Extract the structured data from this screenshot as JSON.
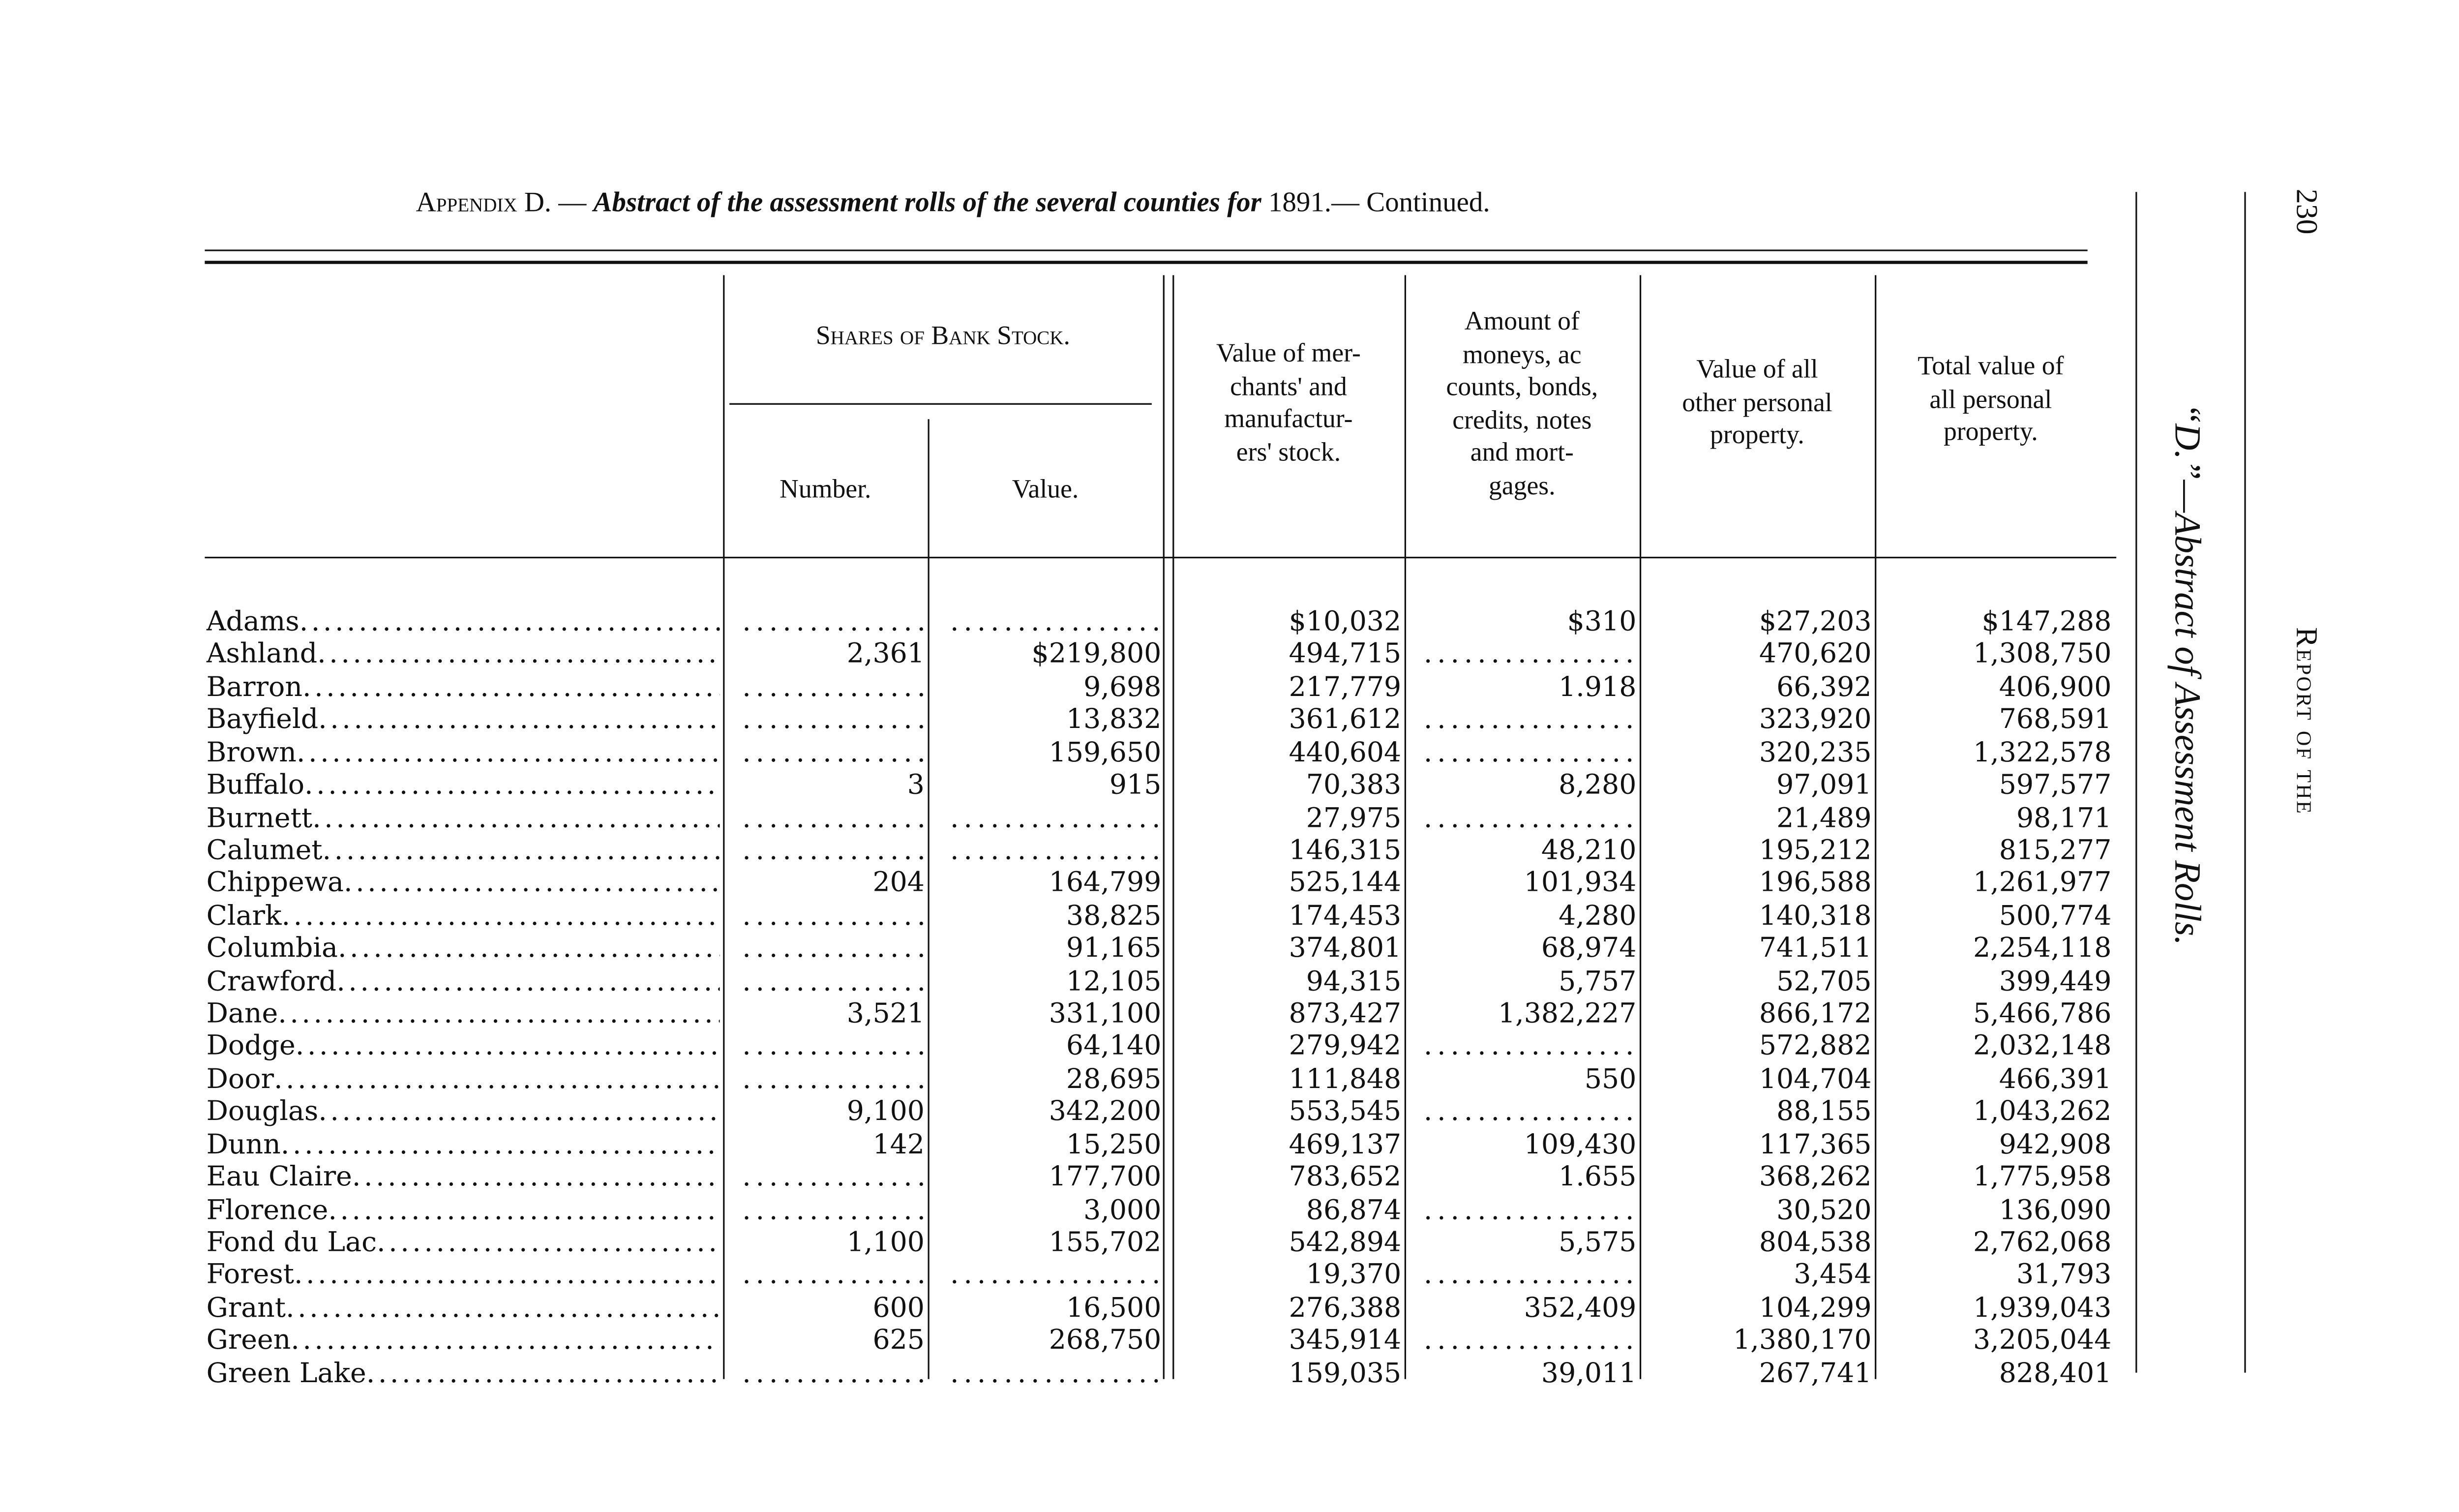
{
  "header": {
    "appendix_label": "Appendix D.",
    "title_dash": " — ",
    "title_italic": "Abstract of the assessment rolls of the several counties for",
    "year": " 1891.",
    "continued": "— Continued."
  },
  "side": {
    "page_number": "230",
    "running_head": "Report of the",
    "section_title": "“D.”—Abstract of Assessment Rolls."
  },
  "columns": {
    "bank_stock_group": "Shares of Bank Stock.",
    "number": "Number.",
    "value": "Value.",
    "merchants": "Value of mer-\nchants' and\nmanufactur-\ners' stock.",
    "moneys": "Amount of\nmoneys, ac\ncounts, bonds,\ncredits, notes\nand mort-\ngages.",
    "other": "Value of all\nother personal\nproperty.",
    "total": "Total value of\nall personal\nproperty."
  },
  "rows": [
    {
      "county": "Adams",
      "number": "",
      "value": "",
      "merchants": "$10,032",
      "moneys": "$310",
      "other": "$27,203",
      "total": "$147,288"
    },
    {
      "county": "Ashland",
      "number": "2,361",
      "value": "$219,800",
      "merchants": "494,715",
      "moneys": "",
      "other": "470,620",
      "total": "1,308,750"
    },
    {
      "county": "Barron",
      "number": "",
      "value": "9,698",
      "merchants": "217,779",
      "moneys": "1.918",
      "other": "66,392",
      "total": "406,900"
    },
    {
      "county": "Bayfield",
      "number": "",
      "value": "13,832",
      "merchants": "361,612",
      "moneys": "",
      "other": "323,920",
      "total": "768,591"
    },
    {
      "county": "Brown",
      "number": "",
      "value": "159,650",
      "merchants": "440,604",
      "moneys": "",
      "other": "320,235",
      "total": "1,322,578"
    },
    {
      "county": "Buffalo",
      "number": "3",
      "value": "915",
      "merchants": "70,383",
      "moneys": "8,280",
      "other": "97,091",
      "total": "597,577"
    },
    {
      "county": "Burnett",
      "number": "",
      "value": "",
      "merchants": "27,975",
      "moneys": "",
      "other": "21,489",
      "total": "98,171"
    },
    {
      "county": "Calumet",
      "number": "",
      "value": "",
      "merchants": "146,315",
      "moneys": "48,210",
      "other": "195,212",
      "total": "815,277"
    },
    {
      "county": "Chippewa",
      "number": "204",
      "value": "164,799",
      "merchants": "525,144",
      "moneys": "101,934",
      "other": "196,588",
      "total": "1,261,977"
    },
    {
      "county": "Clark",
      "number": "",
      "value": "38,825",
      "merchants": "174,453",
      "moneys": "4,280",
      "other": "140,318",
      "total": "500,774"
    },
    {
      "county": "Columbia",
      "number": "",
      "value": "91,165",
      "merchants": "374,801",
      "moneys": "68,974",
      "other": "741,511",
      "total": "2,254,118"
    },
    {
      "county": "Crawford",
      "number": "",
      "value": "12,105",
      "merchants": "94,315",
      "moneys": "5,757",
      "other": "52,705",
      "total": "399,449"
    },
    {
      "county": "Dane",
      "number": "3,521",
      "value": "331,100",
      "merchants": "873,427",
      "moneys": "1,382,227",
      "other": "866,172",
      "total": "5,466,786"
    },
    {
      "county": "Dodge",
      "number": "",
      "value": "64,140",
      "merchants": "279,942",
      "moneys": "",
      "other": "572,882",
      "total": "2,032,148"
    },
    {
      "county": "Door",
      "number": "",
      "value": "28,695",
      "merchants": "111,848",
      "moneys": "550",
      "other": "104,704",
      "total": "466,391"
    },
    {
      "county": "Douglas",
      "number": "9,100",
      "value": "342,200",
      "merchants": "553,545",
      "moneys": "",
      "other": "88,155",
      "total": "1,043,262"
    },
    {
      "county": "Dunn",
      "number": "142",
      "value": "15,250",
      "merchants": "469,137",
      "moneys": "109,430",
      "other": "117,365",
      "total": "942,908"
    },
    {
      "county": "Eau Claire",
      "number": "",
      "value": "177,700",
      "merchants": "783,652",
      "moneys": "1.655",
      "other": "368,262",
      "total": "1,775,958"
    },
    {
      "county": "Florence",
      "number": "",
      "value": "3,000",
      "merchants": "86,874",
      "moneys": "",
      "other": "30,520",
      "total": "136,090"
    },
    {
      "county": "Fond du Lac",
      "number": "1,100",
      "value": "155,702",
      "merchants": "542,894",
      "moneys": "5,575",
      "other": "804,538",
      "total": "2,762,068"
    },
    {
      "county": "Forest",
      "number": "",
      "value": "",
      "merchants": "19,370",
      "moneys": "",
      "other": "3,454",
      "total": "31,793"
    },
    {
      "county": "Grant",
      "number": "600",
      "value": "16,500",
      "merchants": "276,388",
      "moneys": "352,409",
      "other": "104,299",
      "total": "1,939,043"
    },
    {
      "county": "Green",
      "number": "625",
      "value": "268,750",
      "merchants": "345,914",
      "moneys": "",
      "other": "1,380,170",
      "total": "3,205,044"
    },
    {
      "county": "Green Lake",
      "number": "",
      "value": "",
      "merchants": "159,035",
      "moneys": "39,011",
      "other": "267,741",
      "total": "828,401"
    }
  ]
}
